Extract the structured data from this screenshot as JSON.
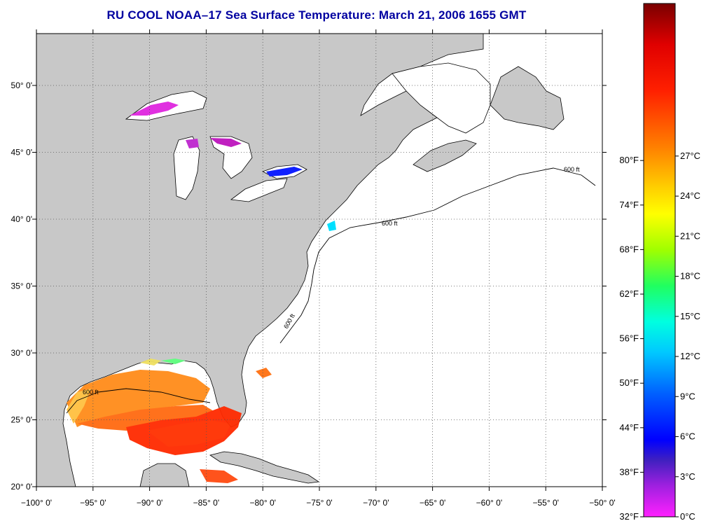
{
  "title": "RU COOL  NOAA–17  Sea Surface Temperature:  March 21, 2006 1655 GMT",
  "map": {
    "lon_labels": [
      "−100° 0'",
      "−95° 0'",
      "−90° 0'",
      "−85° 0'",
      "−80° 0'",
      "−75° 0'",
      "−70° 0'",
      "−65° 0'",
      "−60° 0'",
      "−55° 0'",
      "−50° 0'"
    ],
    "lat_labels": [
      "50° 0'",
      "45° 0'",
      "40° 0'",
      "35° 0'",
      "30° 0'",
      "25° 0'",
      "20° 0'"
    ],
    "contour_label": "600 ft",
    "land_color": "#c8c8c8",
    "ocean_color": "#ffffff"
  },
  "colorbar": {
    "fahrenheit_labels": [
      "80°F",
      "74°F",
      "68°F",
      "62°F",
      "56°F",
      "50°F",
      "44°F",
      "38°F",
      "32°F"
    ],
    "celsius_labels": [
      "27°C",
      "24°C",
      "21°C",
      "18°C",
      "15°C",
      "12°C",
      "9°C",
      "6°C",
      "3°C",
      "0°C"
    ],
    "colors_top_to_bottom": [
      "#8b0000",
      "#ff0000",
      "#ff8000",
      "#ffff00",
      "#00ff80",
      "#00ffff",
      "#0040ff",
      "#0000ff",
      "#8000c0",
      "#ff00ff"
    ]
  }
}
